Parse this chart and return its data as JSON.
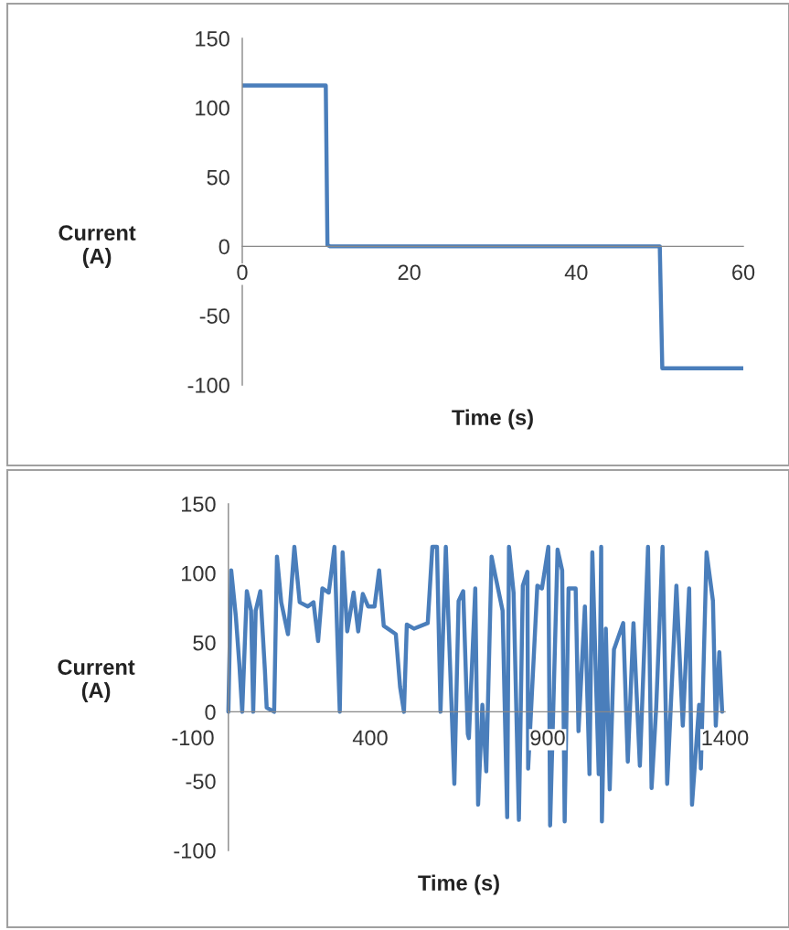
{
  "chart_data": [
    {
      "type": "line",
      "xlabel": "Time (s)",
      "ylabel": "Current\n(A)",
      "color": "#4a7ebb",
      "x": [
        0,
        10,
        10.2,
        10.5,
        50,
        50.3,
        60
      ],
      "values": [
        116,
        116,
        1,
        0,
        0,
        -88,
        -88
      ],
      "xlim": [
        0,
        60
      ],
      "ylim": [
        -100,
        150
      ],
      "xticks": [
        0,
        20,
        40,
        60
      ],
      "yticks": [
        -100,
        -50,
        0,
        50,
        100,
        150
      ]
    },
    {
      "type": "line",
      "xlabel": "Time (s)",
      "ylabel": "Current\n(A)",
      "color": "#4a7ebb",
      "x": [
        0,
        8,
        21,
        31,
        39,
        52,
        64,
        70,
        77,
        90,
        103,
        108,
        129,
        137,
        149,
        168,
        186,
        201,
        224,
        240,
        253,
        265,
        283,
        299,
        314,
        322,
        335,
        353,
        366,
        379,
        394,
        412,
        425,
        438,
        472,
        484,
        495,
        503,
        523,
        562,
        575,
        588,
        598,
        613,
        637,
        649,
        662,
        675,
        678,
        696,
        704,
        716,
        727,
        742,
        752,
        773,
        786,
        791,
        804,
        819,
        830,
        843,
        845,
        871,
        884,
        902,
        907,
        928,
        941,
        948,
        959,
        979,
        987,
        1005,
        1018,
        1026,
        1044,
        1051,
        1053,
        1064,
        1075,
        1087,
        1113,
        1126,
        1142,
        1160,
        1183,
        1193,
        1206,
        1224,
        1237,
        1263,
        1281,
        1299,
        1307,
        1327,
        1332,
        1348,
        1366,
        1374,
        1384,
        1392
      ],
      "values": [
        0,
        102,
        69,
        34,
        0,
        87,
        73,
        0,
        73,
        87,
        30,
        3,
        0,
        112,
        79,
        56,
        119,
        79,
        76,
        79,
        51,
        89,
        86,
        119,
        0,
        115,
        58,
        86,
        58,
        85,
        76,
        76,
        102,
        62,
        56,
        18,
        0,
        63,
        60,
        64,
        119,
        119,
        0,
        119,
        -52,
        80,
        87,
        -16,
        -19,
        89,
        -67,
        5,
        -43,
        112,
        99,
        73,
        -76,
        119,
        86,
        -78,
        91,
        101,
        -41,
        91,
        89,
        119,
        -82,
        117,
        102,
        -79,
        89,
        89,
        -14,
        76,
        -45,
        115,
        -45,
        119,
        -79,
        60,
        -56,
        45,
        64,
        -36,
        64,
        -39,
        119,
        -55,
        3,
        119,
        -52,
        91,
        -10,
        89,
        -67,
        5,
        -41,
        115,
        80,
        -10,
        43,
        0
      ],
      "xlim": [
        -100,
        1400
      ],
      "ylim": [
        -100,
        150
      ],
      "xticks": [
        -100,
        400,
        900,
        1400
      ],
      "yticks": [
        -100,
        -50,
        0,
        50,
        100,
        150
      ]
    }
  ]
}
